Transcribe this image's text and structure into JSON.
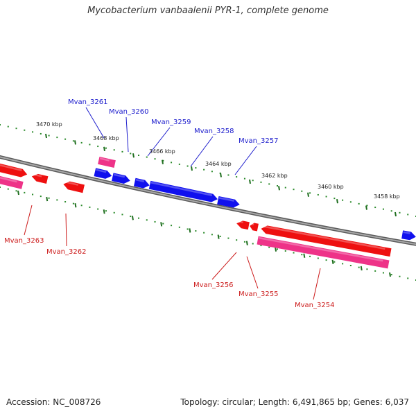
{
  "title": "Mycobacterium vanbaalenii PYR-1, complete genome",
  "footer": {
    "accession": "Accession: NC_008726",
    "summary": "Topology: circular; Length: 6,491,865 bp; Genes: 6,037"
  },
  "colors": {
    "backbone": "#8a8a8a",
    "tick_dot": "#2a8a2a",
    "tick_major": "#1f6e1f",
    "forward_cds": "#1010ee",
    "reverse_cds": "#ee1010",
    "reverse_gene": "#ee3388",
    "forward_label": "#1a1acc",
    "reverse_label": "#cc1a1a"
  },
  "ticks": [
    {
      "label": "3470 kbp",
      "kbp": 3470
    },
    {
      "label": "3468 kbp",
      "kbp": 3468
    },
    {
      "label": "3466 kbp",
      "kbp": 3466
    },
    {
      "label": "3464 kbp",
      "kbp": 3464
    },
    {
      "label": "3462 kbp",
      "kbp": 3462
    },
    {
      "label": "3460 kbp",
      "kbp": 3460
    },
    {
      "label": "3458 kbp",
      "kbp": 3458
    }
  ],
  "forward_genes": [
    {
      "label": "Mvan_3261"
    },
    {
      "label": "Mvan_3260"
    },
    {
      "label": "Mvan_3259"
    },
    {
      "label": "Mvan_3258"
    },
    {
      "label": "Mvan_3257"
    }
  ],
  "reverse_genes": [
    {
      "label": "Mvan_3263"
    },
    {
      "label": "Mvan_3262"
    },
    {
      "label": "Mvan_3256"
    },
    {
      "label": "Mvan_3255"
    },
    {
      "label": "Mvan_3254"
    }
  ]
}
